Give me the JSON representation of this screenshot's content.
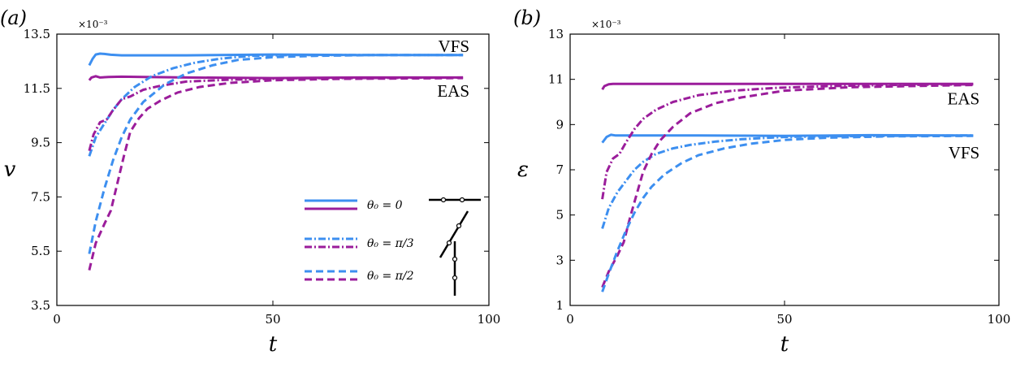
{
  "legend": {
    "entries": [
      {
        "label": "θ₀ = 0",
        "style": "solid"
      },
      {
        "label": "θ₀ = π/3",
        "style": "dashdot"
      },
      {
        "label": "θ₀ = π/2",
        "style": "dashed"
      }
    ]
  },
  "colors": {
    "VFS": "#3d8ff0",
    "EAS": "#9b1d9b",
    "axis": "#000000"
  },
  "chart_data": [
    {
      "type": "line",
      "panel_label": "(a)",
      "xlabel": "t",
      "ylabel": "v",
      "xlim": [
        0,
        100
      ],
      "ylim": [
        3.5,
        13.5
      ],
      "exponent_label": "×10⁻³",
      "xticks": [
        "0",
        "50",
        "100"
      ],
      "yticks": [
        "3.5",
        "5.5",
        "7.5",
        "9.5",
        "11.5",
        "13.5"
      ],
      "xtick_values": [
        0,
        50,
        100
      ],
      "ytick_values": [
        3.5,
        5.5,
        7.5,
        9.5,
        11.5,
        13.5
      ],
      "annotations": [
        {
          "text": "VFS",
          "x": 95.5,
          "y": 13.05
        },
        {
          "text": "EAS",
          "x": 95.5,
          "y": 11.4
        }
      ],
      "series": [
        {
          "group": "VFS",
          "style": "solid",
          "x": [
            7.5,
            8.3,
            9,
            10,
            11,
            12.5,
            15,
            20,
            30,
            50,
            70,
            94
          ],
          "y": [
            12.35,
            12.6,
            12.75,
            12.78,
            12.77,
            12.74,
            12.72,
            12.72,
            12.72,
            12.75,
            12.73,
            12.73
          ]
        },
        {
          "group": "EAS",
          "style": "solid",
          "x": [
            7.5,
            8,
            9,
            10,
            12,
            15,
            20,
            30,
            50,
            70,
            94
          ],
          "y": [
            11.8,
            11.9,
            11.95,
            11.9,
            11.92,
            11.93,
            11.92,
            11.9,
            11.88,
            11.9,
            11.9
          ]
        },
        {
          "group": "VFS",
          "style": "dashdot",
          "x": [
            7.5,
            9,
            11,
            13,
            15,
            18,
            22,
            27,
            32,
            38,
            45,
            55,
            70,
            94
          ],
          "y": [
            9.0,
            9.7,
            10.2,
            10.7,
            11.1,
            11.55,
            11.95,
            12.25,
            12.45,
            12.6,
            12.7,
            12.73,
            12.73,
            12.73
          ]
        },
        {
          "group": "EAS",
          "style": "dashdot",
          "x": [
            7.5,
            8.5,
            10,
            11.5,
            13,
            15,
            17,
            20,
            24,
            30,
            40,
            55,
            70,
            94
          ],
          "y": [
            9.2,
            9.8,
            10.25,
            10.35,
            10.7,
            11.1,
            11.2,
            11.45,
            11.6,
            11.75,
            11.82,
            11.87,
            11.88,
            11.9
          ]
        },
        {
          "group": "VFS",
          "style": "dashed",
          "x": [
            7.5,
            9,
            11,
            13,
            15,
            17,
            20,
            25,
            30,
            36,
            42,
            50,
            60,
            75,
            94
          ],
          "y": [
            5.4,
            6.6,
            7.8,
            8.85,
            9.7,
            10.35,
            11.0,
            11.65,
            12.05,
            12.35,
            12.55,
            12.65,
            12.7,
            12.73,
            12.73
          ]
        },
        {
          "group": "EAS",
          "style": "dashed",
          "x": [
            7.5,
            9,
            11,
            12.5,
            14,
            15.5,
            17,
            19,
            21,
            24,
            28,
            33,
            40,
            50,
            65,
            94
          ],
          "y": [
            4.8,
            5.8,
            6.5,
            7.0,
            8.0,
            9.0,
            9.9,
            10.4,
            10.75,
            11.05,
            11.35,
            11.55,
            11.7,
            11.8,
            11.85,
            11.88
          ]
        }
      ]
    },
    {
      "type": "line",
      "panel_label": "(b)",
      "xlabel": "t",
      "ylabel": "ε",
      "xlim": [
        0,
        100
      ],
      "ylim": [
        1,
        13
      ],
      "exponent_label": "×10⁻³",
      "xticks": [
        "0",
        "50",
        "100"
      ],
      "yticks": [
        "1",
        "3",
        "5",
        "7",
        "9",
        "11",
        "13"
      ],
      "xtick_values": [
        0,
        50,
        100
      ],
      "ytick_values": [
        1,
        3,
        5,
        7,
        9,
        11,
        13
      ],
      "annotations": [
        {
          "text": "EAS",
          "x": 95.5,
          "y": 10.15
        },
        {
          "text": "VFS",
          "x": 95.5,
          "y": 7.75
        }
      ],
      "series": [
        {
          "group": "EAS",
          "style": "solid",
          "x": [
            7.5,
            8,
            9,
            10,
            12,
            15,
            20,
            30,
            50,
            70,
            94
          ],
          "y": [
            10.55,
            10.7,
            10.78,
            10.8,
            10.8,
            10.8,
            10.8,
            10.8,
            10.8,
            10.8,
            10.8
          ]
        },
        {
          "group": "VFS",
          "style": "solid",
          "x": [
            7.5,
            8.5,
            9.5,
            10.5,
            12,
            15,
            20,
            30,
            50,
            70,
            94
          ],
          "y": [
            8.2,
            8.45,
            8.55,
            8.52,
            8.52,
            8.52,
            8.52,
            8.52,
            8.5,
            8.53,
            8.52
          ]
        },
        {
          "group": "EAS",
          "style": "dashdot",
          "x": [
            7.5,
            8.5,
            10,
            11.5,
            13,
            15,
            17,
            20,
            24,
            30,
            38,
            48,
            60,
            75,
            94
          ],
          "y": [
            5.7,
            6.9,
            7.5,
            7.7,
            8.2,
            8.8,
            9.25,
            9.65,
            10.0,
            10.3,
            10.5,
            10.62,
            10.7,
            10.75,
            10.78
          ]
        },
        {
          "group": "VFS",
          "style": "dashdot",
          "x": [
            7.5,
            9,
            11,
            13,
            15,
            17,
            20,
            24,
            28,
            34,
            40,
            50,
            60,
            75,
            94
          ],
          "y": [
            4.4,
            5.3,
            6.0,
            6.5,
            7.0,
            7.35,
            7.7,
            7.95,
            8.1,
            8.25,
            8.35,
            8.45,
            8.48,
            8.5,
            8.52
          ]
        },
        {
          "group": "EAS",
          "style": "dashed",
          "x": [
            7.5,
            9,
            11,
            12.5,
            14,
            15.5,
            17,
            19,
            21,
            24,
            28,
            34,
            40,
            50,
            65,
            94
          ],
          "y": [
            1.8,
            2.5,
            3.2,
            3.8,
            4.9,
            5.9,
            6.9,
            7.7,
            8.3,
            8.9,
            9.5,
            9.95,
            10.2,
            10.5,
            10.65,
            10.75
          ]
        },
        {
          "group": "VFS",
          "style": "dashed",
          "x": [
            7.5,
            9,
            11,
            13,
            15,
            17,
            19,
            22,
            26,
            30,
            36,
            42,
            50,
            60,
            75,
            94
          ],
          "y": [
            1.6,
            2.4,
            3.4,
            4.3,
            5.1,
            5.75,
            6.25,
            6.8,
            7.3,
            7.65,
            7.95,
            8.15,
            8.32,
            8.42,
            8.48,
            8.5
          ]
        }
      ]
    }
  ]
}
